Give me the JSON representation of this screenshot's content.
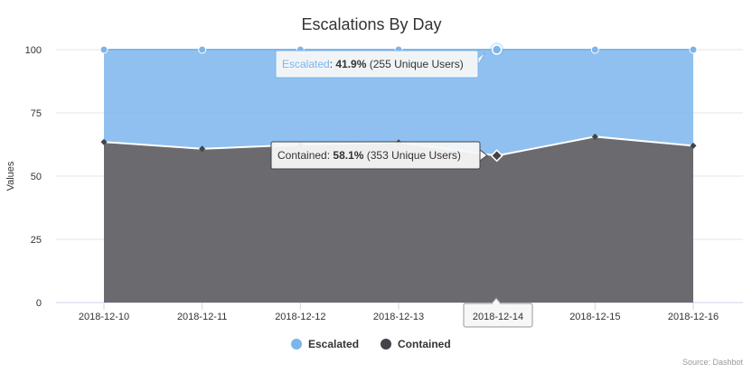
{
  "chart_data": {
    "type": "area",
    "stacking": "percent",
    "title": "Escalations By Day",
    "ylabel": "Values",
    "ylim": [
      0,
      100
    ],
    "yticks": [
      0,
      25,
      50,
      75,
      100
    ],
    "categories": [
      "2018-12-10",
      "2018-12-11",
      "2018-12-12",
      "2018-12-13",
      "2018-12-14",
      "2018-12-15",
      "2018-12-16"
    ],
    "series": [
      {
        "name": "Escalated",
        "color": "#7cb5ec",
        "values": [
          36.5,
          39.2,
          37.6,
          36.7,
          41.9,
          34.4,
          38.0
        ]
      },
      {
        "name": "Contained",
        "color": "#434348",
        "values": [
          63.5,
          60.8,
          62.4,
          63.3,
          58.1,
          65.6,
          62.0
        ]
      }
    ],
    "grid": true,
    "legend": "bottom-center",
    "credits": "Source: Dashbot",
    "tooltip": {
      "category": "2018-12-14",
      "escalated": {
        "label": "Escalated",
        "value": "41.9%",
        "users": "(255 Unique Users)"
      },
      "contained": {
        "label": "Contained",
        "value": "58.1%",
        "users": "(353 Unique Users)"
      }
    }
  }
}
